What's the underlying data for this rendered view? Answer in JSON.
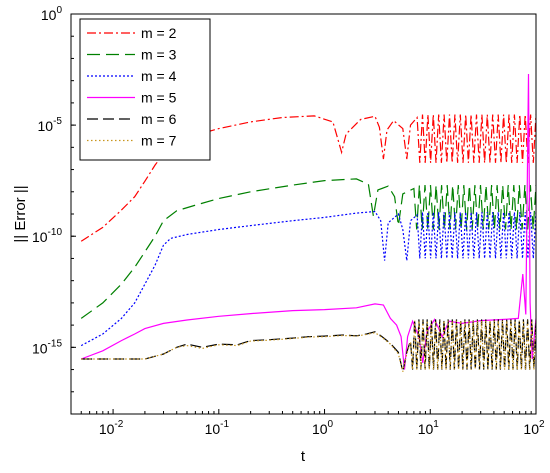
{
  "chart_data": {
    "type": "line",
    "xlabel": "t",
    "ylabel": "|| Error ||",
    "xscale": "log",
    "yscale": "log",
    "xlim": [
      0.004,
      100
    ],
    "ylim": [
      1e-18,
      1
    ],
    "grid": false,
    "legend_position": "top-left",
    "x_ticks": [
      {
        "base": "10",
        "exp": "-2",
        "value": 0.01
      },
      {
        "base": "10",
        "exp": "-1",
        "value": 0.1
      },
      {
        "base": "10",
        "exp": "0",
        "value": 1
      },
      {
        "base": "10",
        "exp": "1",
        "value": 10
      },
      {
        "base": "10",
        "exp": "2",
        "value": 100
      }
    ],
    "y_ticks": [
      {
        "base": "10",
        "exp": "-15",
        "value": 1e-15
      },
      {
        "base": "10",
        "exp": "-10",
        "value": 1e-10
      },
      {
        "base": "10",
        "exp": "-5",
        "value": 1e-05
      },
      {
        "base": "10",
        "exp": "0",
        "value": 1
      }
    ],
    "series": [
      {
        "name": "m = 2",
        "color": "#ff0000",
        "dash": "9,3,2,3",
        "points": [
          [
            0.005,
            6e-11
          ],
          [
            0.008,
            2.5e-10
          ],
          [
            0.012,
            1.5e-09
          ],
          [
            0.016,
            6e-09
          ],
          [
            0.02,
            3e-08
          ],
          [
            0.025,
            1.6e-07
          ],
          [
            0.03,
            5e-07
          ],
          [
            0.04,
            1.5e-06
          ],
          [
            0.06,
            3.5e-06
          ],
          [
            0.1,
            7e-06
          ],
          [
            0.2,
            1.4e-05
          ],
          [
            0.4,
            2.2e-05
          ],
          [
            0.8,
            2.6e-05
          ],
          [
            1.2,
            1.4e-05
          ],
          [
            1.45,
            6e-07
          ],
          [
            1.6,
            4e-06
          ],
          [
            2.2,
            1.8e-05
          ],
          [
            3,
            2.5e-05
          ],
          [
            3.3,
            8e-06
          ],
          [
            3.6,
            3e-07
          ],
          [
            3.9,
            6e-06
          ],
          [
            4.5,
            1.6e-05
          ],
          [
            5.5,
            7e-06
          ],
          [
            6,
            3e-07
          ],
          [
            6.5,
            1e-05
          ],
          [
            7.5,
            2.2e-05
          ]
        ],
        "oscillation": {
          "from": 7.5,
          "to": 100,
          "high": 3e-05,
          "low": 2e-07,
          "cycles": 22
        }
      },
      {
        "name": "m = 3",
        "color": "#008000",
        "dash": "13,6",
        "points": [
          [
            0.005,
            2e-14
          ],
          [
            0.008,
            1e-13
          ],
          [
            0.012,
            7e-13
          ],
          [
            0.016,
            4e-12
          ],
          [
            0.02,
            2e-11
          ],
          [
            0.025,
            1e-10
          ],
          [
            0.03,
            5e-10
          ],
          [
            0.04,
            1.4e-09
          ],
          [
            0.06,
            2.5e-09
          ],
          [
            0.1,
            5e-09
          ],
          [
            0.2,
            1e-08
          ],
          [
            0.5,
            2e-08
          ],
          [
            1,
            3.2e-08
          ],
          [
            2,
            3.8e-08
          ],
          [
            2.6,
            2.2e-08
          ],
          [
            2.9,
            8e-10
          ],
          [
            3.2,
            1.2e-08
          ],
          [
            4,
            1.8e-08
          ],
          [
            4.6,
            6e-09
          ],
          [
            5,
            3e-10
          ],
          [
            5.5,
            8e-09
          ],
          [
            7,
            1.4e-08
          ]
        ],
        "oscillation": {
          "from": 7,
          "to": 100,
          "high": 2e-08,
          "low": 2e-10,
          "cycles": 22
        }
      },
      {
        "name": "m = 4",
        "color": "#0000ff",
        "dash": "2,2",
        "points": [
          [
            0.005,
            1.2e-15
          ],
          [
            0.008,
            4e-15
          ],
          [
            0.012,
            2e-14
          ],
          [
            0.016,
            1e-13
          ],
          [
            0.02,
            7e-13
          ],
          [
            0.025,
            5e-12
          ],
          [
            0.03,
            4e-11
          ],
          [
            0.035,
            8e-11
          ],
          [
            0.05,
            1.2e-10
          ],
          [
            0.1,
            2e-10
          ],
          [
            0.2,
            3e-10
          ],
          [
            0.5,
            5e-10
          ],
          [
            1,
            7e-10
          ],
          [
            2,
            1.1e-09
          ],
          [
            3,
            1.3e-09
          ],
          [
            3.4,
            5e-10
          ],
          [
            3.7,
            8e-12
          ],
          [
            4,
            4e-10
          ],
          [
            5,
            1e-09
          ],
          [
            5.5,
            2e-10
          ],
          [
            6,
            8e-12
          ],
          [
            6.5,
            5e-10
          ],
          [
            7.5,
            9e-10
          ]
        ],
        "oscillation": {
          "from": 7.5,
          "to": 100,
          "high": 1.2e-09,
          "low": 1e-11,
          "cycles": 22
        }
      },
      {
        "name": "m = 5",
        "color": "#ff00ff",
        "dash": "",
        "points": [
          [
            0.005,
            3e-16
          ],
          [
            0.008,
            7e-16
          ],
          [
            0.012,
            2e-15
          ],
          [
            0.016,
            4e-15
          ],
          [
            0.02,
            7e-15
          ],
          [
            0.03,
            1.2e-14
          ],
          [
            0.05,
            1.7e-14
          ],
          [
            0.1,
            2.5e-14
          ],
          [
            0.2,
            3.3e-14
          ],
          [
            0.5,
            4.5e-14
          ],
          [
            1,
            5e-14
          ],
          [
            2,
            6e-14
          ],
          [
            3,
            9e-14
          ],
          [
            3.6,
            8e-14
          ],
          [
            4.2,
            2e-14
          ],
          [
            4.8,
            1e-14
          ],
          [
            5.3,
            3e-15
          ],
          [
            5.7,
            1e-16
          ],
          [
            6.1,
            3e-15
          ],
          [
            6.8,
            1.5e-14
          ],
          [
            7.8,
            3e-15
          ],
          [
            8.5,
            2e-16
          ],
          [
            9.3,
            5e-15
          ],
          [
            11,
            1.8e-14
          ],
          [
            13,
            3e-15
          ],
          [
            15,
            1.5e-14
          ],
          [
            20,
            1.2e-14
          ],
          [
            30,
            1.6e-14
          ],
          [
            50,
            1.8e-14
          ],
          [
            68,
            2e-14
          ],
          [
            75,
            2e-12
          ],
          [
            80,
            3e-14
          ],
          [
            85,
            0.002
          ],
          [
            88,
            1e-13
          ],
          [
            92,
            3e-16
          ],
          [
            100,
            2e-14
          ]
        ]
      },
      {
        "name": "m = 6",
        "color": "#000000",
        "dash": "11,5",
        "points": [
          [
            0.005,
            3e-16
          ],
          [
            0.01,
            3e-16
          ],
          [
            0.02,
            3e-16
          ],
          [
            0.03,
            5e-16
          ],
          [
            0.04,
            1e-15
          ],
          [
            0.05,
            1.4e-15
          ],
          [
            0.07,
            1e-15
          ],
          [
            0.1,
            1.4e-15
          ],
          [
            0.15,
            1.3e-15
          ],
          [
            0.2,
            2e-15
          ],
          [
            0.3,
            2.2e-15
          ],
          [
            0.5,
            2.6e-15
          ],
          [
            0.7,
            3e-15
          ],
          [
            1,
            3.2e-15
          ],
          [
            1.5,
            3.6e-15
          ],
          [
            2,
            3.3e-15
          ],
          [
            2.5,
            4e-15
          ],
          [
            3,
            5e-15
          ],
          [
            3.5,
            3e-15
          ],
          [
            4.2,
            1.5e-15
          ],
          [
            5,
            6e-16
          ],
          [
            5.5,
            8e-17
          ],
          [
            6,
            6e-16
          ],
          [
            6.5,
            2e-15
          ]
        ],
        "oscillation": {
          "from": 6.5,
          "to": 100,
          "high": 1.8e-14,
          "low": 1e-16,
          "cycles": 30
        }
      },
      {
        "name": "m = 7",
        "color": "#c8961e",
        "dash": "1.5,2.5",
        "points": [
          [
            0.005,
            3e-16
          ],
          [
            0.01,
            3e-16
          ],
          [
            0.02,
            3e-16
          ],
          [
            0.03,
            5e-16
          ],
          [
            0.04,
            1e-15
          ],
          [
            0.05,
            1.2e-15
          ],
          [
            0.07,
            9e-16
          ],
          [
            0.1,
            1.3e-15
          ],
          [
            0.15,
            1.2e-15
          ],
          [
            0.2,
            1.9e-15
          ],
          [
            0.3,
            2.1e-15
          ],
          [
            0.5,
            2.5e-15
          ],
          [
            0.7,
            2.9e-15
          ],
          [
            1,
            3e-15
          ],
          [
            1.5,
            3.4e-15
          ],
          [
            2,
            3.2e-15
          ],
          [
            2.5,
            3.8e-15
          ],
          [
            3,
            4.6e-15
          ],
          [
            3.5,
            2.8e-15
          ],
          [
            4.2,
            1.4e-15
          ],
          [
            5,
            5e-16
          ],
          [
            5.5,
            8e-17
          ],
          [
            6,
            5e-16
          ],
          [
            6.5,
            1.8e-15
          ]
        ],
        "oscillation": {
          "from": 6.5,
          "to": 100,
          "high": 1.6e-14,
          "low": 1e-16,
          "cycles": 30
        }
      }
    ]
  }
}
